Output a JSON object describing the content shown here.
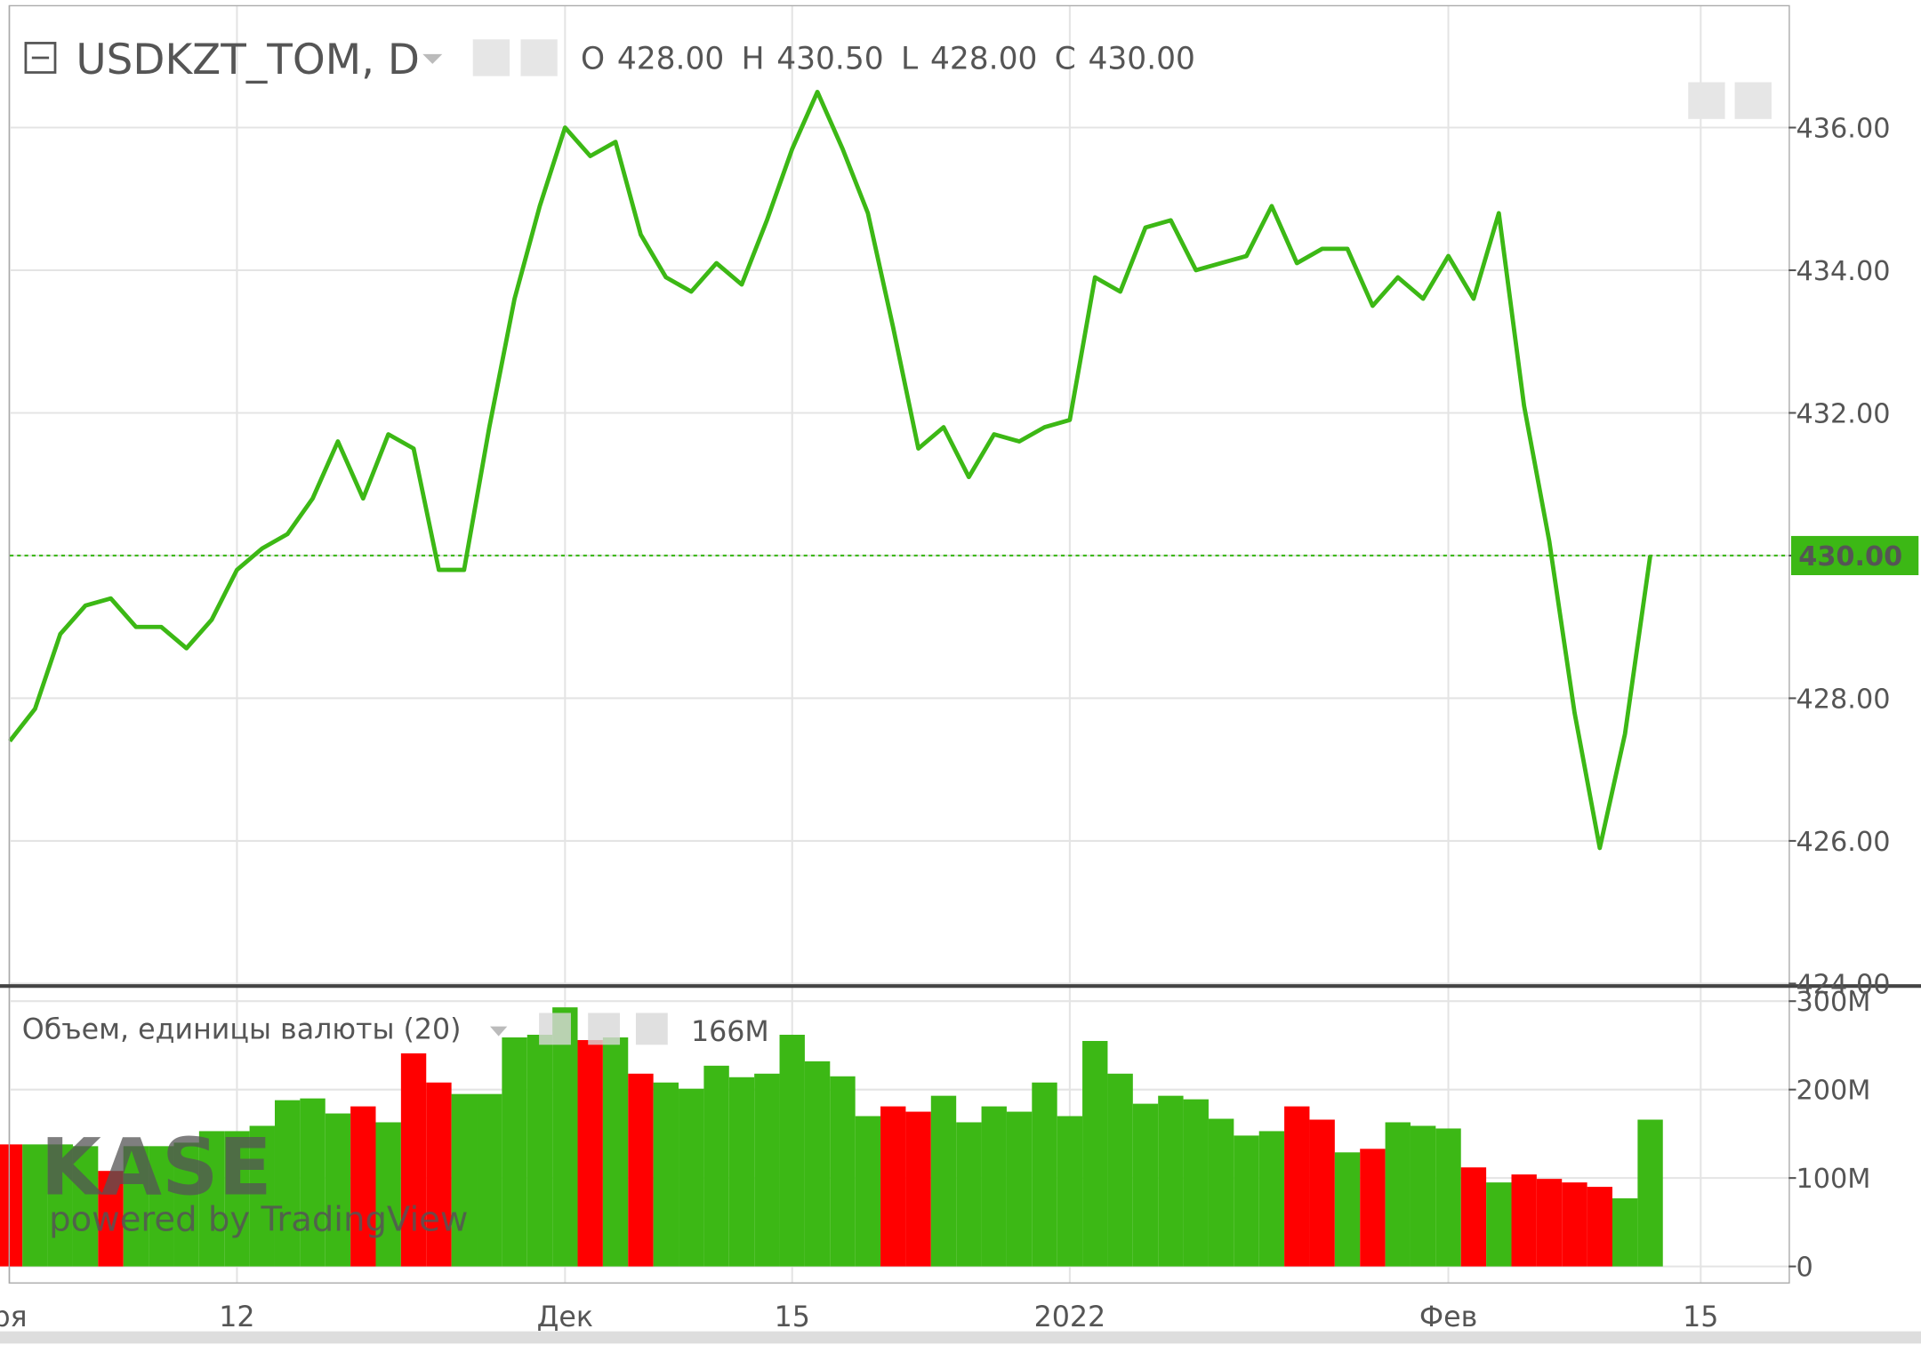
{
  "chart_data": [
    {
      "type": "line",
      "title": "USDKZT_TOM, D",
      "ohlc": [
        {
          "name": "O",
          "label": "428.00"
        },
        {
          "name": "H",
          "label": "430.50"
        },
        {
          "name": "L",
          "label": "428.00"
        },
        {
          "name": "C",
          "label": "430.00"
        }
      ],
      "categories": [
        "ря",
        null,
        null,
        null,
        null,
        null,
        null,
        null,
        null,
        "12",
        null,
        null,
        null,
        null,
        null,
        null,
        null,
        null,
        null,
        null,
        null,
        null,
        "Дек",
        null,
        null,
        null,
        null,
        null,
        null,
        null,
        null,
        "15",
        null,
        null,
        null,
        null,
        null,
        null,
        null,
        null,
        null,
        null,
        "2022",
        null,
        null,
        null,
        null,
        null,
        null,
        null,
        null,
        null,
        null,
        null,
        null,
        null,
        null,
        "Фев",
        null,
        null,
        null,
        null,
        null,
        null,
        null,
        null,
        null,
        "15"
      ],
      "series": [
        {
          "name": "USDKZT_TOM",
          "color": "#3cb815",
          "values": [
            427.4,
            427.85,
            428.9,
            429.3,
            429.4,
            429.0,
            429.0,
            428.7,
            429.1,
            429.8,
            430.1,
            430.3,
            430.8,
            431.6,
            430.8,
            431.7,
            431.5,
            429.8,
            429.8,
            431.8,
            433.6,
            434.9,
            436.0,
            435.6,
            435.8,
            434.5,
            433.9,
            433.7,
            434.1,
            433.8,
            434.7,
            435.7,
            436.5,
            435.7,
            434.8,
            433.2,
            431.5,
            431.8,
            431.1,
            431.7,
            431.6,
            431.8,
            431.9,
            433.9,
            433.7,
            434.6,
            434.7,
            434.0,
            434.1,
            434.2,
            434.9,
            434.1,
            434.3,
            434.3,
            433.5,
            433.9,
            433.6,
            434.2,
            433.6,
            434.8,
            432.1,
            430.2,
            427.8,
            425.9,
            427.5,
            430.0,
            null,
            null
          ]
        }
      ],
      "last_price": {
        "value": 430,
        "label": "430.00"
      },
      "ylim": [
        424,
        437.7
      ],
      "yticks": [
        {
          "value": 424,
          "label": "424.00"
        },
        {
          "value": 426,
          "label": "426.00"
        },
        {
          "value": 428,
          "label": "428.00"
        },
        {
          "value": 430,
          "label": "430.00"
        },
        {
          "value": 432,
          "label": "432.00"
        },
        {
          "value": 434,
          "label": "434.00"
        },
        {
          "value": 436,
          "label": "436.00"
        }
      ],
      "grid": true
    },
    {
      "type": "bar",
      "title": "Объем, единицы валюты (20)",
      "last_label": "166M",
      "series": [
        {
          "name": "Объем",
          "colors": [
            "#ff0000",
            "#3cb815",
            "#3cb815",
            "#3cb815",
            "#ff0000",
            "#3cb815",
            "#3cb815",
            "#3cb815",
            "#3cb815",
            "#3cb815",
            "#3cb815",
            "#3cb815",
            "#3cb815",
            "#3cb815",
            "#ff0000",
            "#3cb815",
            "#ff0000",
            "#ff0000",
            "#3cb815",
            "#3cb815",
            "#3cb815",
            "#3cb815",
            "#3cb815",
            "#ff0000",
            "#3cb815",
            "#ff0000",
            "#3cb815",
            "#3cb815",
            "#3cb815",
            "#3cb815",
            "#3cb815",
            "#3cb815",
            "#3cb815",
            "#3cb815",
            "#3cb815",
            "#ff0000",
            "#ff0000",
            "#3cb815",
            "#3cb815",
            "#3cb815",
            "#3cb815",
            "#3cb815",
            "#3cb815",
            "#3cb815",
            "#3cb815",
            "#3cb815",
            "#3cb815",
            "#3cb815",
            "#3cb815",
            "#3cb815",
            "#3cb815",
            "#ff0000",
            "#ff0000",
            "#3cb815",
            "#ff0000",
            "#3cb815",
            "#3cb815",
            "#3cb815",
            "#ff0000",
            "#3cb815",
            "#ff0000",
            "#ff0000",
            "#ff0000",
            "#ff0000",
            "#3cb815",
            "#3cb815",
            null,
            null
          ],
          "values": [
            138,
            138,
            138,
            136,
            108,
            136,
            136,
            140,
            153,
            153,
            159,
            188,
            190,
            173,
            181,
            163,
            241,
            208,
            195,
            195,
            259,
            262,
            293,
            256,
            259,
            218,
            208,
            201,
            227,
            214,
            218,
            262,
            232,
            215,
            170,
            181,
            175,
            193,
            163,
            181,
            175,
            208,
            170,
            255,
            218,
            184,
            193,
            189,
            167,
            148,
            153,
            181,
            166,
            129,
            133,
            163,
            159,
            156,
            112,
            95,
            104,
            99,
            95,
            90,
            77,
            166,
            null,
            null
          ]
        }
      ],
      "ylim": [
        -18,
        313
      ],
      "yticks": [
        0,
        {
          "value": 100,
          "label": "100M"
        },
        {
          "value": 200,
          "label": "200M"
        },
        {
          "value": 300,
          "label": "300M"
        }
      ],
      "grid": true
    }
  ],
  "watermark": {
    "logo": "KASE",
    "tagline": "powered by TradingView"
  }
}
